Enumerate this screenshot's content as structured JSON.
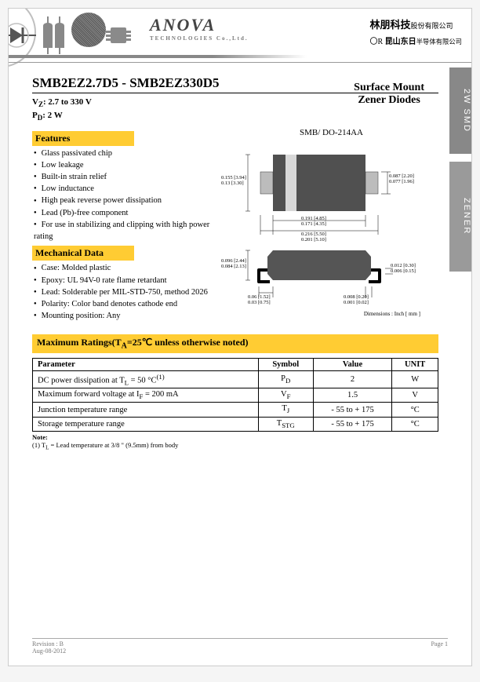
{
  "header": {
    "logo_main": "ANOVA",
    "logo_sub": "TECHNOLOGIES Co.,Ltd.",
    "cn_line1_bold": "林朋科技",
    "cn_line1_small": "股份有限公司",
    "cn_line2_prefix": "〇R",
    "cn_line2_main": "昆山东日",
    "cn_line2_small": "半导体有限公司"
  },
  "side_tabs": {
    "tab1": "2W SMD",
    "tab2": "ZENER"
  },
  "title": {
    "part_from": "SMB2EZ2.7D5",
    "dash": " - ",
    "part_to": "SMB2EZ330D5",
    "vz_label": "V",
    "vz_sub": "Z",
    "vz_rest": ": 2.7 to 330 V",
    "pd_label": "P",
    "pd_sub": "D",
    "pd_rest": ": 2 W",
    "product_line1": "Surface Mount",
    "product_line2": "Zener Diodes"
  },
  "features_hdr": "Features",
  "features": [
    "Glass passivated chip",
    "Low leakage",
    "Built-in strain relief",
    "Low inductance",
    "High peak reverse power dissipation",
    "Lead (Pb)-free component",
    "For use in stabilizing and clipping with high power rating"
  ],
  "mech_hdr": "Mechanical Data",
  "mech": [
    "Case: Molded plastic",
    "Epoxy: UL 94V-0 rate flame retardant",
    "Lead: Solderable per MIL-STD-750, method 2026",
    "Polarity: Color band denotes cathode end",
    "Mounting position: Any"
  ],
  "package": {
    "label": "SMB/ DO-214AA",
    "dims": {
      "body_h_in": "0.155",
      "body_h_mm": "3.94",
      "body_h_in2": "0.13",
      "body_h_mm2": "3.30",
      "band_w_in": "0.087",
      "band_w_mm": "2.20",
      "band_w_in2": "0.077",
      "band_w_mm2": "1.96",
      "lead_g_in": "0.191",
      "lead_g_mm": "4.85",
      "lead_g_in2": "0.171",
      "lead_g_mm2": "4.35",
      "total_l_in": "0.216",
      "total_l_mm": "5.50",
      "total_l_in2": "0.201",
      "total_l_mm2": "5.10",
      "body_w_in": "0.096",
      "body_w_mm": "2.44",
      "body_w_in2": "0.084",
      "body_w_mm2": "2.13",
      "lead_t_in": "0.012",
      "lead_t_mm": "0.30",
      "lead_t_in2": "0.006",
      "lead_t_mm2": "0.15",
      "foot_in": "0.06",
      "foot_mm": "1.52",
      "foot_in2": "0.03",
      "foot_mm2": "0.75",
      "standoff_in": "0.008",
      "standoff_mm": "0.20",
      "standoff_in2": "0.001",
      "standoff_mm2": "0.02"
    },
    "units_note": "Dimensions : Inch [ mm ]"
  },
  "ratings_hdr": "Maximum Ratings(T",
  "ratings_hdr_sub": "A",
  "ratings_hdr_rest": "=25℃ unless otherwise noted)",
  "ratings": {
    "cols": [
      "Parameter",
      "Symbol",
      "Value",
      "UNIT"
    ],
    "rows": [
      {
        "param_html": "DC power dissipation at T<sub>L</sub> = 50 °C<sup>(1)</sup>",
        "sym": "P",
        "sub": "D",
        "val": "2",
        "unit": "W"
      },
      {
        "param_html": "Maximum forward voltage at I<sub>F</sub> = 200 mA",
        "sym": "V",
        "sub": "F",
        "val": "1.5",
        "unit": "V"
      },
      {
        "param_html": "Junction temperature range",
        "sym": "T",
        "sub": "J",
        "val": "- 55 to + 175",
        "unit": "°C"
      },
      {
        "param_html": "Storage temperature range",
        "sym": "T",
        "sub": "STG",
        "val": "- 55 to + 175",
        "unit": "°C"
      }
    ]
  },
  "note_hdr": "Note:",
  "note_1": "(1) T",
  "note_1_sub": "L",
  "note_1_rest": " = Lead temperature at 3/8 \" (9.5mm) from body",
  "footer": {
    "rev_label": "Revision : ",
    "rev": "B",
    "date": "Aug-08-2012",
    "page": "Page 1"
  },
  "colors": {
    "accent": "#ffcc33",
    "side_tab": "#888888",
    "side_tab2": "#9a9a9a",
    "grey": "#8a8a8a"
  }
}
